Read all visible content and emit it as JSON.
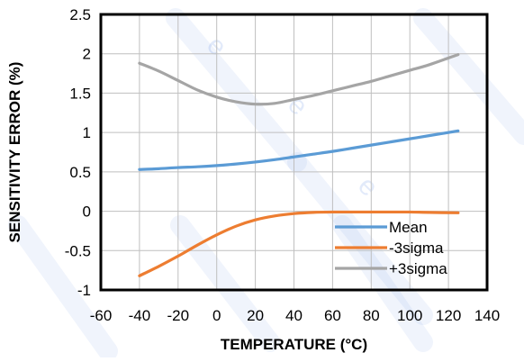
{
  "chart_data": {
    "type": "line",
    "title": "",
    "xlabel": "TEMPERATURE (°C)",
    "ylabel": "SENSITIVITY ERROR (%)",
    "xlim": [
      -60,
      140
    ],
    "ylim": [
      -1,
      2.5
    ],
    "x_ticks": [
      -60,
      -40,
      -20,
      0,
      20,
      40,
      60,
      80,
      100,
      120,
      140
    ],
    "y_ticks": [
      -1,
      -0.5,
      0,
      0.5,
      1,
      1.5,
      2,
      2.5
    ],
    "x_tick_labels": [
      "-60",
      "-40",
      "-20",
      "0",
      "20",
      "40",
      "60",
      "80",
      "100",
      "120",
      "140"
    ],
    "y_tick_labels": [
      "-1",
      "-0.5",
      "0",
      "0.5",
      "1",
      "1.5",
      "2",
      "2.5"
    ],
    "grid": true,
    "legend_position": "bottom-right",
    "series": [
      {
        "name": "Mean",
        "color": "#5b9bd5",
        "x": [
          -40,
          -30,
          -20,
          -10,
          0,
          10,
          20,
          30,
          40,
          50,
          60,
          70,
          80,
          90,
          100,
          110,
          125
        ],
        "values": [
          0.53,
          0.54,
          0.555,
          0.565,
          0.58,
          0.6,
          0.625,
          0.655,
          0.69,
          0.725,
          0.76,
          0.8,
          0.84,
          0.88,
          0.92,
          0.96,
          1.02
        ]
      },
      {
        "name": "-3sigma",
        "color": "#ed7d31",
        "x": [
          -40,
          -30,
          -20,
          -10,
          0,
          10,
          20,
          30,
          40,
          50,
          60,
          70,
          80,
          90,
          100,
          110,
          125
        ],
        "values": [
          -0.82,
          -0.7,
          -0.57,
          -0.43,
          -0.3,
          -0.19,
          -0.11,
          -0.06,
          -0.03,
          -0.015,
          -0.01,
          -0.01,
          -0.01,
          -0.01,
          -0.01,
          -0.015,
          -0.02
        ]
      },
      {
        "name": "+3sigma",
        "color": "#a5a5a5",
        "x": [
          -40,
          -30,
          -20,
          -10,
          0,
          10,
          20,
          30,
          40,
          50,
          60,
          70,
          80,
          90,
          100,
          110,
          125
        ],
        "values": [
          1.88,
          1.78,
          1.66,
          1.54,
          1.45,
          1.39,
          1.36,
          1.37,
          1.42,
          1.47,
          1.53,
          1.59,
          1.65,
          1.72,
          1.79,
          1.86,
          1.99
        ]
      }
    ]
  },
  "watermark": {
    "text": "e",
    "color": "#1a5bd9"
  }
}
